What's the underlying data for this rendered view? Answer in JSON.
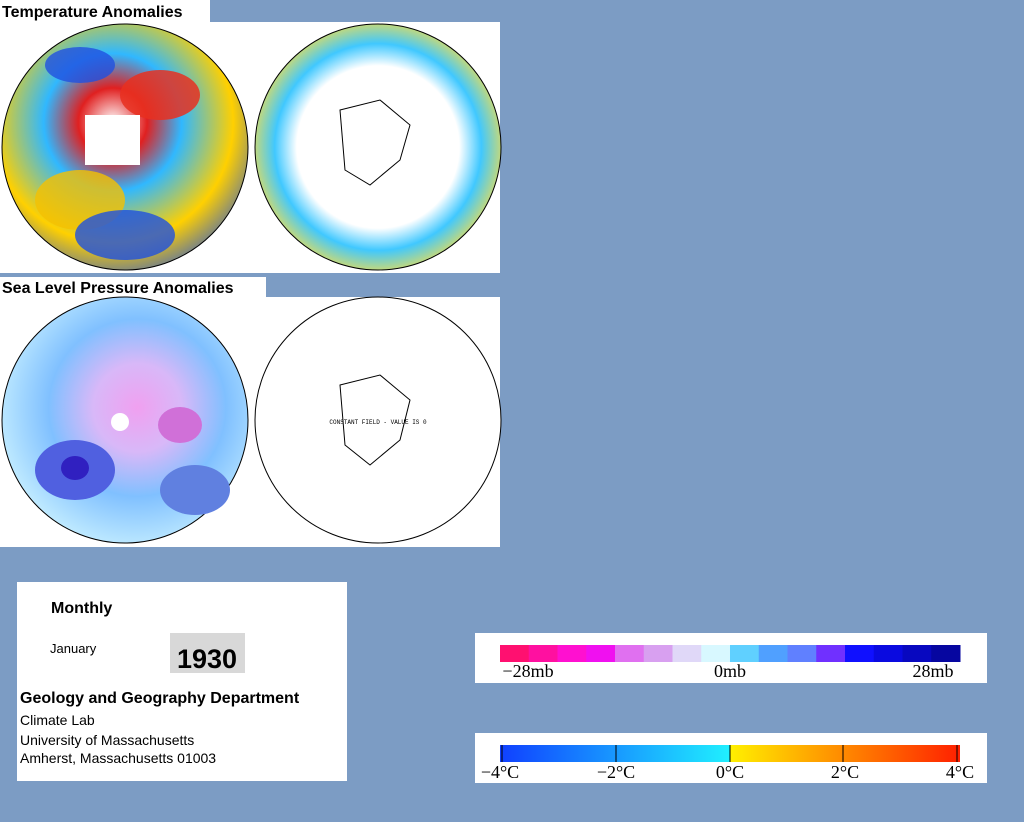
{
  "panels": [
    {
      "title": "Temperature Anomalies"
    },
    {
      "title": "Sea Level Pressure Anomalies",
      "annotation": "CONSTANT FIELD - VALUE IS 0"
    }
  ],
  "info": {
    "period": "Monthly",
    "month": "January",
    "year": "1930",
    "department": "Geology and Geography Department",
    "lines": [
      "Climate Lab",
      "University of Massachusetts",
      "Amherst, Massachusetts 01003"
    ]
  },
  "legends": {
    "pressure": {
      "labels": [
        "−28mb",
        "0mb",
        "28mb"
      ]
    },
    "temperature": {
      "labels": [
        "−4°C",
        "−2°C",
        "0°C",
        "2°C",
        "4°C"
      ]
    }
  }
}
